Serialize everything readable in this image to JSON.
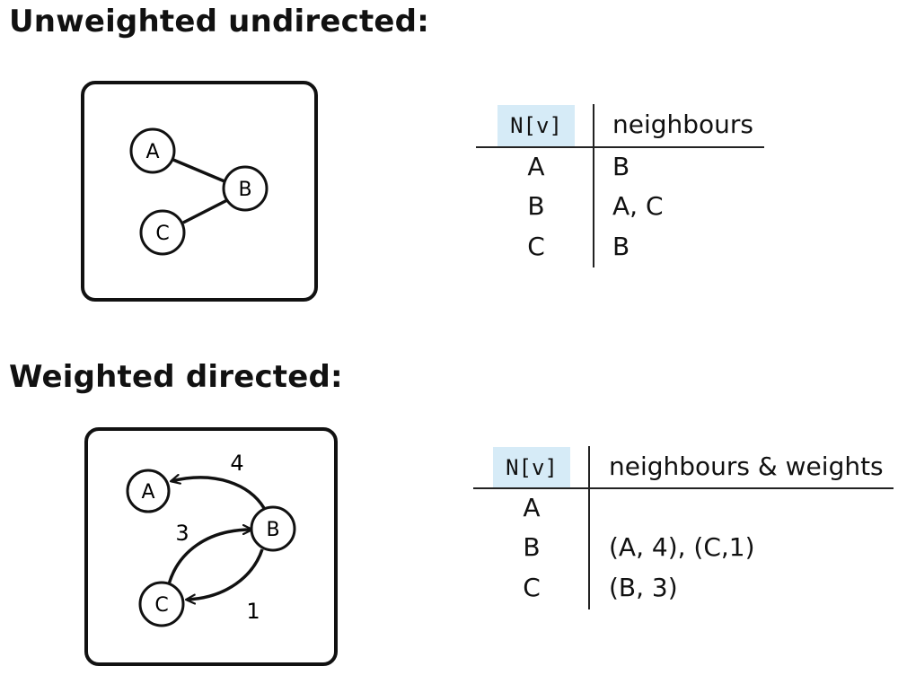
{
  "sections": {
    "undirected": {
      "heading": "Unweighted undirected:",
      "graph": {
        "nodes": [
          "A",
          "B",
          "C"
        ],
        "edges": [
          [
            "A",
            "B"
          ],
          [
            "B",
            "C"
          ]
        ]
      },
      "table": {
        "header_key": "N[v]",
        "header_value": "neighbours",
        "rows": [
          {
            "key": "A",
            "value": "B"
          },
          {
            "key": "B",
            "value": "A, C"
          },
          {
            "key": "C",
            "value": "B"
          }
        ]
      }
    },
    "directed": {
      "heading": "Weighted directed:",
      "graph": {
        "nodes": [
          "A",
          "B",
          "C"
        ],
        "edges": [
          {
            "from": "B",
            "to": "A",
            "weight": "4"
          },
          {
            "from": "C",
            "to": "B",
            "weight": "3"
          },
          {
            "from": "B",
            "to": "C",
            "weight": "1"
          }
        ]
      },
      "table": {
        "header_key": "N[v]",
        "header_value": "neighbours & weights",
        "rows": [
          {
            "key": "A",
            "value": ""
          },
          {
            "key": "B",
            "value": "(A, 4), (C,1)"
          },
          {
            "key": "C",
            "value": "(B, 3)"
          }
        ]
      }
    }
  },
  "colors": {
    "header_highlight": "#d6ebf7",
    "ink": "#111111"
  }
}
